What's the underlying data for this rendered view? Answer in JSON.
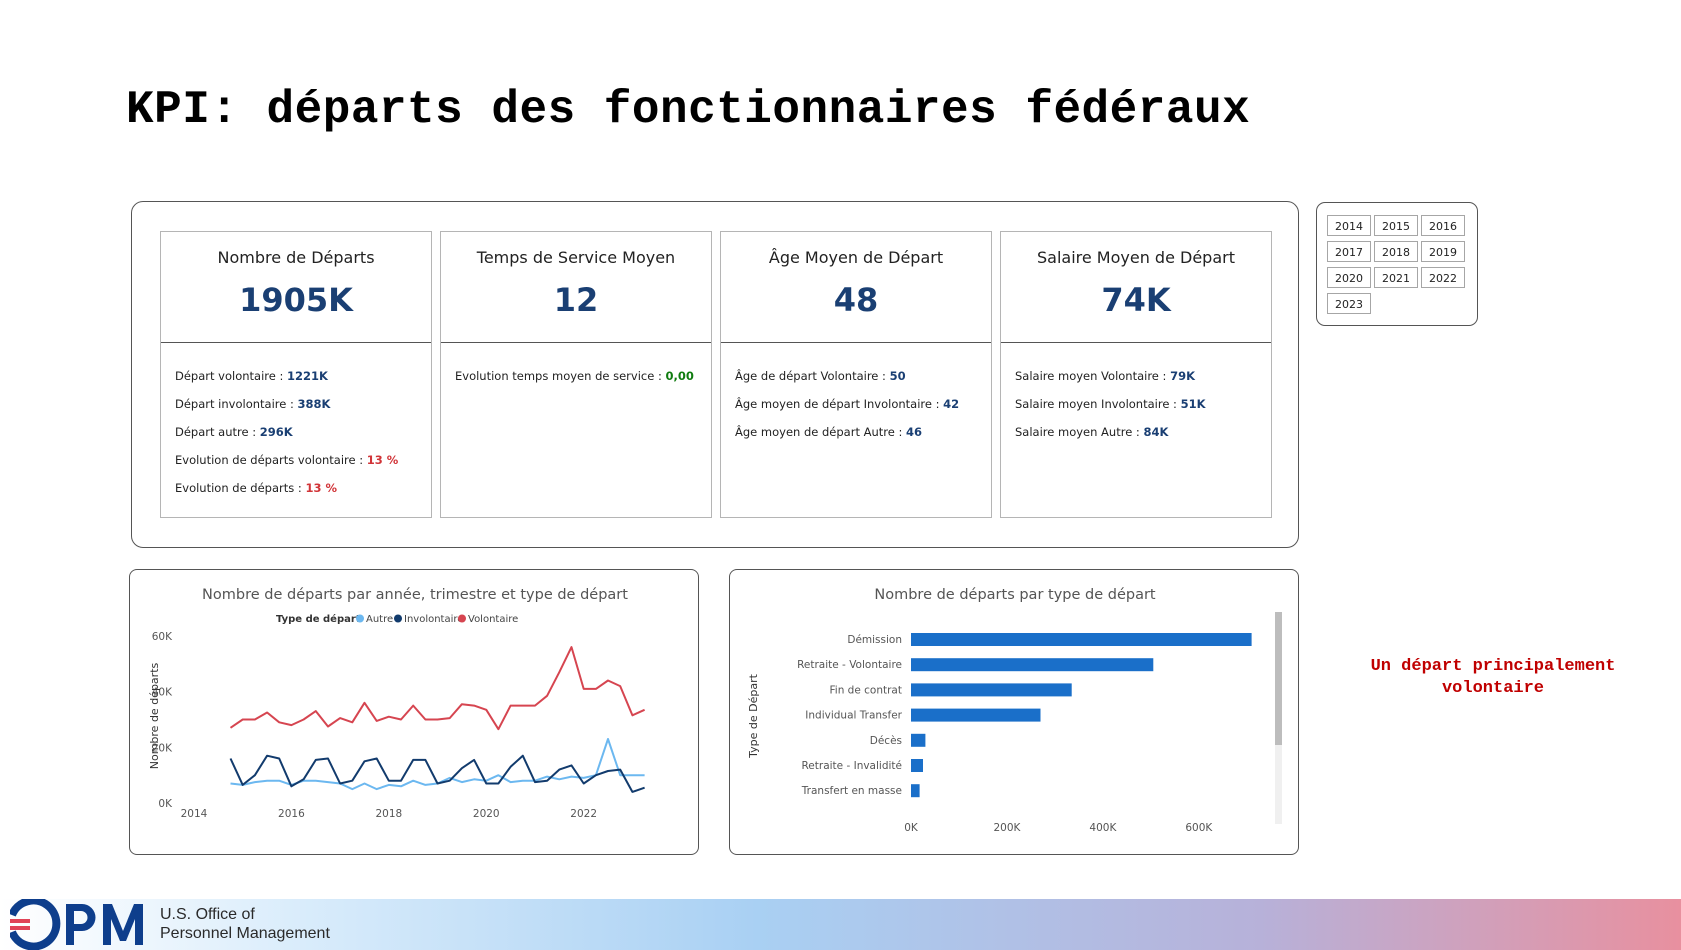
{
  "page": {
    "title": "KPI: départs des fonctionnaires fédéraux",
    "annotation_line1": "Un départ principalement",
    "annotation_line2": "volontaire"
  },
  "kpi_cards": [
    {
      "title": "Nombre de Départs",
      "value": "1905K",
      "stats": [
        {
          "label": "Départ volontaire : ",
          "value": "1221K",
          "tone": "blue"
        },
        {
          "label": "Départ involontaire : ",
          "value": "388K",
          "tone": "blue"
        },
        {
          "label": "Départ autre : ",
          "value": "296K",
          "tone": "blue"
        },
        {
          "label": "Evolution de départs volontaire : ",
          "value": "13 %",
          "tone": "red"
        },
        {
          "label": "Evolution de départs : ",
          "value": "13 %",
          "tone": "red"
        }
      ]
    },
    {
      "title": "Temps de Service Moyen",
      "value": "12",
      "stats": [
        {
          "label": "Evolution temps moyen de service : ",
          "value": "0,00",
          "tone": "green"
        }
      ]
    },
    {
      "title": "Âge Moyen de Départ",
      "value": "48",
      "stats": [
        {
          "label": "Âge de départ Volontaire : ",
          "value": "50",
          "tone": "blue"
        },
        {
          "label": "Âge moyen de départ Involontaire : ",
          "value": "42",
          "tone": "blue"
        },
        {
          "label": "Âge moyen de départ Autre : ",
          "value": "46",
          "tone": "blue"
        }
      ]
    },
    {
      "title": "Salaire Moyen de Départ",
      "value": "74K",
      "stats": [
        {
          "label": "Salaire moyen Volontaire : ",
          "value": "79K",
          "tone": "blue"
        },
        {
          "label": "Salaire moyen Involontaire : ",
          "value": "51K",
          "tone": "blue"
        },
        {
          "label": "Salaire moyen Autre : ",
          "value": "84K",
          "tone": "blue"
        }
      ]
    }
  ],
  "year_filter": {
    "years": [
      "2014",
      "2015",
      "2016",
      "2017",
      "2018",
      "2019",
      "2020",
      "2021",
      "2022",
      "2023"
    ]
  },
  "colors": {
    "autre": "#6cb8f0",
    "involontaire": "#123b6d",
    "volontaire": "#d64550",
    "bar": "#1a6fc9",
    "kpi_value": "#1a3f73"
  },
  "chart_data": [
    {
      "type": "line",
      "title": "Nombre de départs par année, trimestre et type de départ",
      "legend_title": "Type de départ",
      "legend_position": "top",
      "xlabel": "",
      "ylabel": "Nombre de départs",
      "x_ticks": [
        "2014",
        "2016",
        "2018",
        "2020",
        "2022"
      ],
      "y_ticks": [
        "0K",
        "20K",
        "40K",
        "60K"
      ],
      "xlim": [
        2014,
        2023.3
      ],
      "ylim": [
        0,
        60000
      ],
      "grid": false,
      "x": [
        2014.75,
        2015.0,
        2015.25,
        2015.5,
        2015.75,
        2016.0,
        2016.25,
        2016.5,
        2016.75,
        2017.0,
        2017.25,
        2017.5,
        2017.75,
        2018.0,
        2018.25,
        2018.5,
        2018.75,
        2019.0,
        2019.25,
        2019.5,
        2019.75,
        2020.0,
        2020.25,
        2020.5,
        2020.75,
        2021.0,
        2021.25,
        2021.5,
        2021.75,
        2022.0,
        2022.25,
        2022.5,
        2022.75,
        2023.0,
        2023.25
      ],
      "series": [
        {
          "name": "Autre",
          "color": "#6cb8f0",
          "values": [
            7000,
            6500,
            7500,
            8000,
            8000,
            6500,
            8000,
            8000,
            7500,
            7000,
            5000,
            7000,
            5000,
            6500,
            6000,
            8000,
            6500,
            7000,
            9000,
            7500,
            8500,
            8000,
            10000,
            7500,
            8000,
            8000,
            9500,
            8500,
            9500,
            9000,
            10000,
            23000,
            10000,
            10000,
            10000
          ]
        },
        {
          "name": "Involontaire",
          "color": "#123b6d",
          "values": [
            16000,
            6500,
            10000,
            17000,
            16000,
            6000,
            8500,
            15500,
            16000,
            7000,
            8000,
            15000,
            16000,
            8000,
            8000,
            15500,
            15500,
            7000,
            8000,
            12500,
            15500,
            7000,
            7000,
            13000,
            17000,
            7500,
            8000,
            12000,
            13500,
            7000,
            10000,
            11500,
            12000,
            4000,
            5500
          ]
        },
        {
          "name": "Volontaire",
          "color": "#d64550",
          "values": [
            27000,
            30000,
            30000,
            32500,
            29000,
            28000,
            30000,
            33000,
            27500,
            30500,
            29000,
            36000,
            29500,
            31000,
            30000,
            35000,
            30000,
            30000,
            30500,
            35500,
            35000,
            33500,
            26500,
            35000,
            35000,
            35000,
            38500,
            47000,
            56000,
            41000,
            41000,
            44000,
            42000,
            31500,
            33500
          ]
        }
      ]
    },
    {
      "type": "bar",
      "orientation": "horizontal",
      "title": "Nombre de départs par type de départ",
      "xlabel": "",
      "ylabel": "Type de Départ",
      "categories": [
        "Démission",
        "Retraite - Volontaire",
        "Fin de contrat",
        "Individual Transfer",
        "Décès",
        "Retraite - Invalidité",
        "Transfert en masse"
      ],
      "values": [
        710000,
        505000,
        335000,
        270000,
        30000,
        25000,
        18000
      ],
      "x_ticks": [
        "0K",
        "200K",
        "400K",
        "600K"
      ],
      "xlim": [
        0,
        740000
      ],
      "grid": false
    }
  ]
}
